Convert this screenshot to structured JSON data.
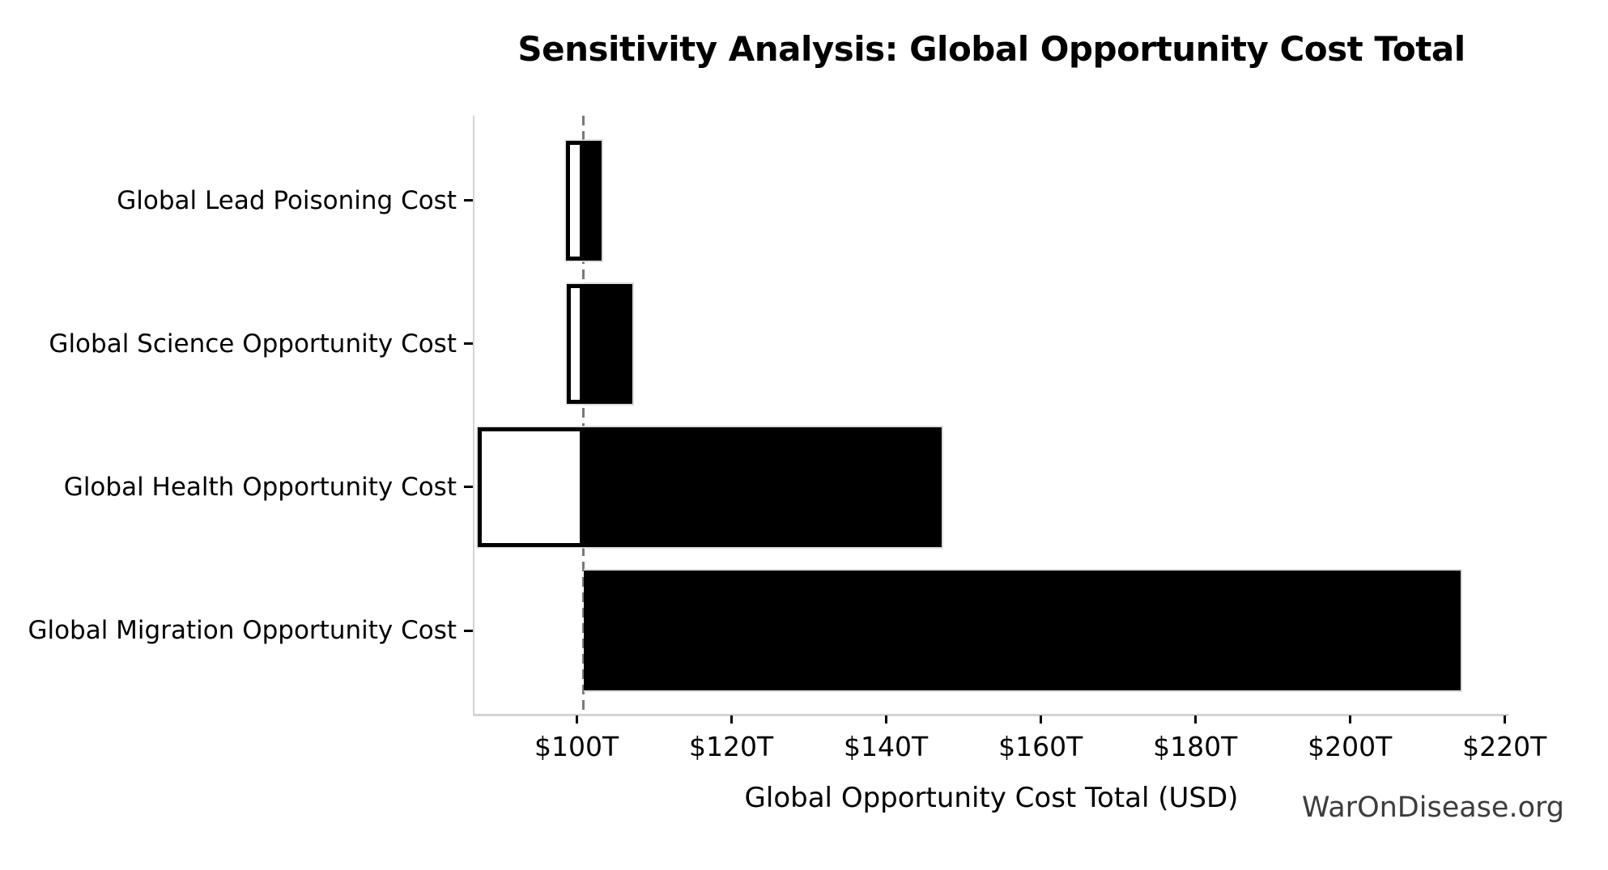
{
  "page": {
    "watermark": "WarOnDisease.org"
  },
  "chart_data": {
    "type": "bar",
    "orientation": "horizontal",
    "subtype": "tornado-sensitivity",
    "title": "Sensitivity Analysis: Global Opportunity Cost Total",
    "xlabel": "Global Opportunity Cost Total (USD)",
    "ylabel": "",
    "categories": [
      "Global Lead Poisoning Cost",
      "Global Science Opportunity Cost",
      "Global Health Opportunity Cost",
      "Global Migration Opportunity Cost"
    ],
    "units": "trillions USD ($T)",
    "baseline_value": 100.9,
    "series": [
      {
        "name": "low_estimate",
        "style": "white-fill-black-outline",
        "values": [
          98.6,
          98.7,
          87.2,
          100.9
        ]
      },
      {
        "name": "high_estimate",
        "style": "black-fill",
        "values": [
          103.2,
          107.2,
          147.2,
          214.3
        ]
      }
    ],
    "x_ticks": [
      100,
      120,
      140,
      160,
      180,
      200,
      220
    ],
    "x_tick_labels": [
      "$100T",
      "$120T",
      "$140T",
      "$160T",
      "$180T",
      "$200T",
      "$220T"
    ],
    "xlim": [
      86.8,
      220.5
    ],
    "grid": false,
    "legend": false,
    "baseline_line": {
      "style": "dashed",
      "color": "#7a7a7a"
    }
  },
  "colors": {
    "background": "#ffffff",
    "bar_high_fill": "#000000",
    "bar_high_edge": "#dcdcdc",
    "bar_low_fill": "#ffffff",
    "bar_low_edge": "#000000",
    "spine": "#d4d4d4",
    "tick": "#000000",
    "text": "#000000",
    "baseline": "#7a7a7a",
    "watermark": "#3d3d3d"
  }
}
